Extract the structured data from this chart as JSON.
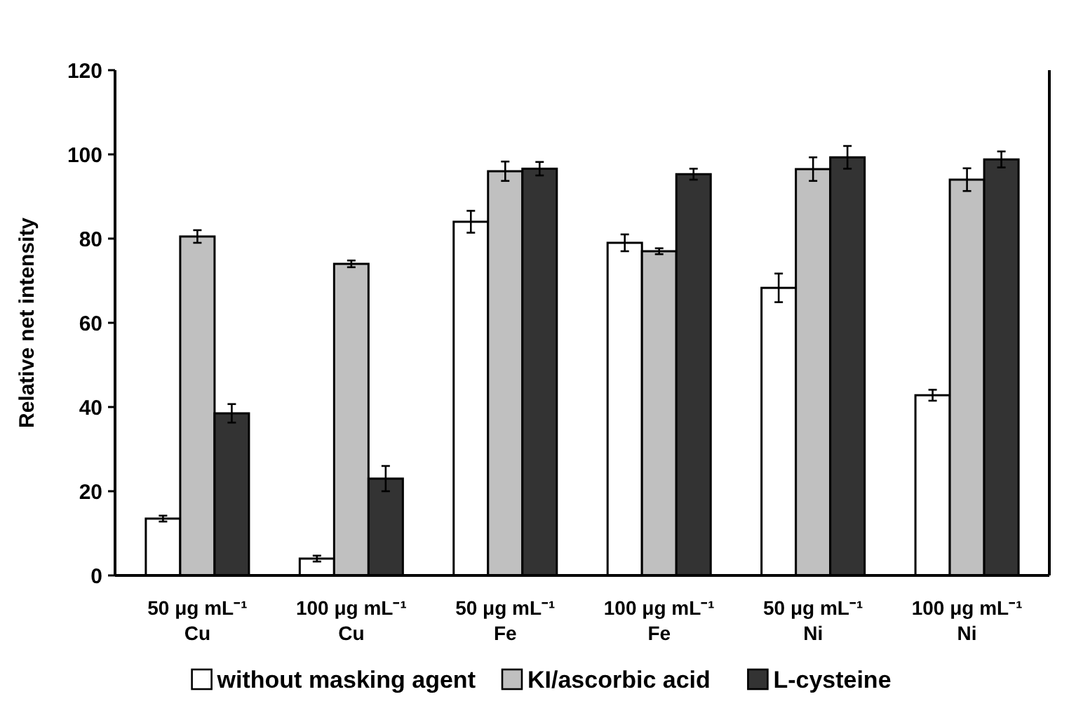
{
  "chart_data": {
    "type": "bar",
    "ylabel": "Relative net intensity",
    "categories": [
      "50 μg mL⁻¹\nCu",
      "100 μg mL⁻¹\nCu",
      "50 μg mL⁻¹\nFe",
      "100 μg mL⁻¹\nFe",
      "50 μg mL⁻¹\nNi",
      "100 μg mL⁻¹\nNi"
    ],
    "series": [
      {
        "name": "without masking agent",
        "color": "#ffffff",
        "values": [
          13.5,
          4,
          84,
          79,
          68.3,
          42.8
        ],
        "errors": [
          0.7,
          0.7,
          2.6,
          2,
          3.4,
          1.3
        ]
      },
      {
        "name": "KI/ascorbic acid",
        "color": "#c0c0c0",
        "values": [
          80.5,
          74,
          96,
          77,
          96.5,
          94
        ],
        "errors": [
          1.5,
          0.8,
          2.3,
          0.7,
          2.8,
          2.7
        ]
      },
      {
        "name": "L-cysteine",
        "color": "#333333",
        "values": [
          38.5,
          23,
          96.6,
          95.3,
          99.3,
          98.8
        ],
        "errors": [
          2.2,
          3,
          1.6,
          1.3,
          2.7,
          1.9
        ]
      }
    ],
    "ylim": [
      0,
      120
    ],
    "yticks": [
      0,
      20,
      40,
      60,
      80,
      100,
      120
    ],
    "grid": false,
    "legend": "bottom"
  }
}
